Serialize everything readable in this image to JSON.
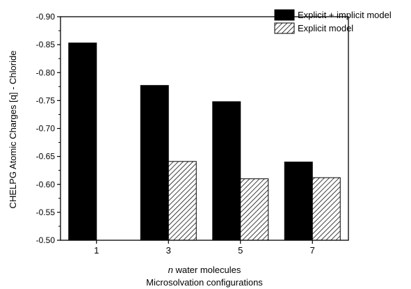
{
  "chart_data": {
    "type": "bar",
    "categories": [
      "1",
      "3",
      "5",
      "7"
    ],
    "series": [
      {
        "name": "Explicit + implicit model",
        "color": "#000000",
        "fill": "solid",
        "values": [
          -0.853,
          -0.777,
          -0.748,
          -0.64
        ]
      },
      {
        "name": "Explicit model",
        "color": "#000000",
        "fill": "hatched",
        "values": [
          null,
          -0.641,
          -0.61,
          -0.612
        ]
      }
    ],
    "ylabel": "CHELPG Atomic Charges [q] - Chloride",
    "xlabel_line1_italic": "n",
    "xlabel_line1_rest": " water molecules",
    "xlabel_line2": "Microsolvation configurations",
    "ylim": [
      -0.5,
      -0.9
    ],
    "yticks": [
      -0.9,
      -0.85,
      -0.8,
      -0.75,
      -0.7,
      -0.65,
      -0.6,
      -0.55,
      -0.5
    ],
    "y_axis_direction": "inverted",
    "grid": false,
    "legend": "top-right"
  }
}
